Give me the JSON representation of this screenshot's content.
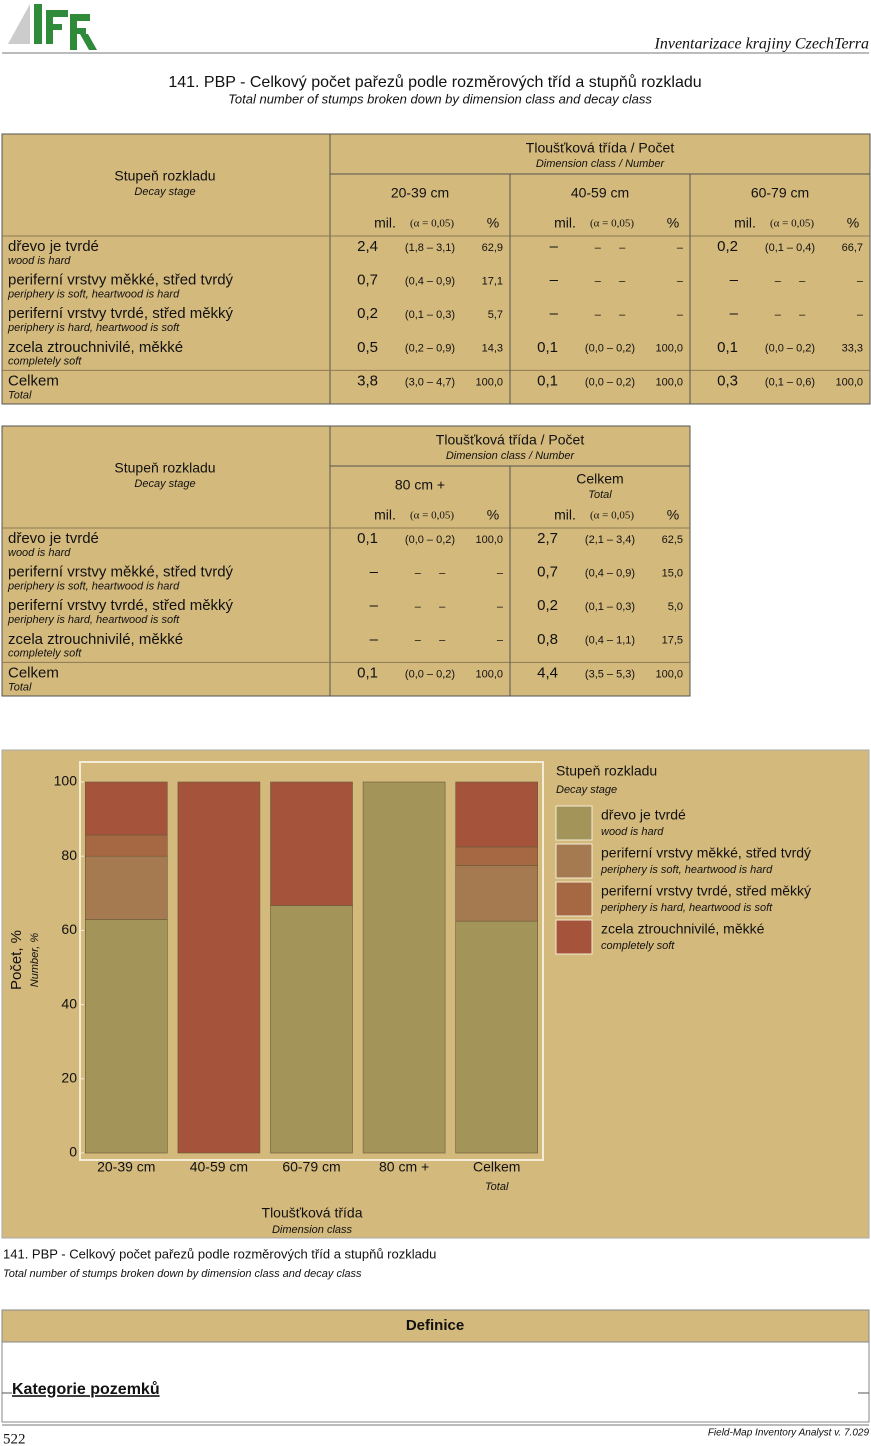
{
  "header": {
    "organization": "Inventarizace krajiny CzechTerra"
  },
  "title": "141. PBP - Celkový počet pařezů podle rozměrových tříd a stupňů rozkladu",
  "subtitle": "Total number of stumps broken down by dimension class and decay class",
  "tables": [
    {
      "row_header": "Stupeň rozkladu",
      "row_header_en": "Decay stage",
      "group_header": "Tloušťková třída / Počet",
      "group_header_en": "Dimension class / Number",
      "columns": [
        {
          "label": "20-39 cm"
        },
        {
          "label": "40-59 cm"
        },
        {
          "label": "60-79 cm"
        }
      ],
      "subheaders": [
        "mil.",
        "(α = 0,05)",
        "%"
      ],
      "rows": [
        {
          "label": "dřevo je tvrdé",
          "label_en": "wood is hard",
          "cells": [
            [
              "2,4",
              "(1,8 – 3,1)",
              "62,9"
            ],
            [
              "–",
              "–      –",
              "–"
            ],
            [
              "0,2",
              "(0,1 – 0,4)",
              "66,7"
            ]
          ]
        },
        {
          "label": "periferní vrstvy měkké, střed tvrdý",
          "label_en": "periphery is soft, heartwood is hard",
          "cells": [
            [
              "0,7",
              "(0,4 – 0,9)",
              "17,1"
            ],
            [
              "–",
              "–      –",
              "–"
            ],
            [
              "–",
              "–      –",
              "–"
            ]
          ]
        },
        {
          "label": "periferní vrstvy tvrdé, střed měkký",
          "label_en": "periphery is hard, heartwood is soft",
          "cells": [
            [
              "0,2",
              "(0,1 – 0,3)",
              "5,7"
            ],
            [
              "–",
              "–      –",
              "–"
            ],
            [
              "–",
              "–      –",
              "–"
            ]
          ]
        },
        {
          "label": "zcela ztrouchnivilé, měkké",
          "label_en": "completely soft",
          "cells": [
            [
              "0,5",
              "(0,2 – 0,9)",
              "14,3"
            ],
            [
              "0,1",
              "(0,0 – 0,2)",
              "100,0"
            ],
            [
              "0,1",
              "(0,0 – 0,2)",
              "33,3"
            ]
          ]
        },
        {
          "label": "Celkem",
          "label_en": "Total",
          "cells": [
            [
              "3,8",
              "(3,0 – 4,7)",
              "100,0"
            ],
            [
              "0,1",
              "(0,0 – 0,2)",
              "100,0"
            ],
            [
              "0,3",
              "(0,1 – 0,6)",
              "100,0"
            ]
          ]
        }
      ]
    },
    {
      "row_header": "Stupeň rozkladu",
      "row_header_en": "Decay stage",
      "group_header": "Tloušťková třída / Počet",
      "group_header_en": "Dimension class / Number",
      "columns": [
        {
          "label": "80 cm +"
        },
        {
          "label": "Celkem",
          "label_en": "Total"
        }
      ],
      "subheaders": [
        "mil.",
        "(α = 0,05)",
        "%"
      ],
      "rows": [
        {
          "label": "dřevo je tvrdé",
          "label_en": "wood is hard",
          "cells": [
            [
              "0,1",
              "(0,0 – 0,2)",
              "100,0"
            ],
            [
              "2,7",
              "(2,1 – 3,4)",
              "62,5"
            ]
          ]
        },
        {
          "label": "periferní vrstvy měkké, střed tvrdý",
          "label_en": "periphery is soft, heartwood is hard",
          "cells": [
            [
              "–",
              "–      –",
              "–"
            ],
            [
              "0,7",
              "(0,4 – 0,9)",
              "15,0"
            ]
          ]
        },
        {
          "label": "periferní vrstvy tvrdé, střed měkký",
          "label_en": "periphery is hard, heartwood is soft",
          "cells": [
            [
              "–",
              "–      –",
              "–"
            ],
            [
              "0,2",
              "(0,1 – 0,3)",
              "5,0"
            ]
          ]
        },
        {
          "label": "zcela ztrouchnivilé, měkké",
          "label_en": "completely soft",
          "cells": [
            [
              "–",
              "–      –",
              "–"
            ],
            [
              "0,8",
              "(0,4 – 1,1)",
              "17,5"
            ]
          ]
        },
        {
          "label": "Celkem",
          "label_en": "Total",
          "cells": [
            [
              "0,1",
              "(0,0 – 0,2)",
              "100,0"
            ],
            [
              "4,4",
              "(3,5 – 5,3)",
              "100,0"
            ]
          ]
        }
      ]
    }
  ],
  "chart_data": {
    "type": "stacked_bar",
    "categories": [
      "20-39 cm",
      "40-59 cm",
      "60-79 cm",
      "80 cm +",
      "Celkem"
    ],
    "category_sublabels": [
      null,
      null,
      null,
      null,
      "Total"
    ],
    "series": [
      {
        "name": "dřevo je tvrdé",
        "name_en": "wood is hard",
        "color": "#a3945a",
        "values": [
          62.9,
          0,
          66.7,
          100,
          62.5
        ]
      },
      {
        "name": "periferní vrstvy měkké, střed tvrdý",
        "name_en": "periphery is soft, heartwood is hard",
        "color": "#a57a50",
        "values": [
          17.1,
          0,
          0,
          0,
          15.0
        ]
      },
      {
        "name": "periferní vrstvy tvrdé, střed měkký",
        "name_en": "periphery is hard, heartwood is soft",
        "color": "#a66842",
        "values": [
          5.7,
          0,
          0,
          0,
          5.0
        ]
      },
      {
        "name": "zcela ztrouchnivilé, měkké",
        "name_en": "completely soft",
        "color": "#a5533a",
        "values": [
          14.3,
          100,
          33.3,
          0,
          17.5
        ]
      }
    ],
    "ylim": [
      0,
      100
    ],
    "yticks": [
      0,
      20,
      40,
      60,
      80,
      100
    ],
    "y_label": "Počet, %",
    "y_label_en": "Number, %",
    "x_label": "Tloušťková třída",
    "x_label_en": "Dimension class",
    "legend_title": "Stupeň rozkladu",
    "legend_title_en": "Decay stage"
  },
  "definitions": {
    "title": "Definice",
    "items": [
      "Kategorie pozemků"
    ]
  },
  "footer": {
    "page": "522",
    "software": "Field-Map Inventory Analyst v. 7.029"
  }
}
